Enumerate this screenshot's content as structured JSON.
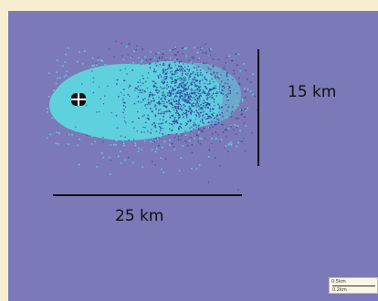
{
  "map": {
    "vertical_scale_label": "15 km",
    "horizontal_scale_label": "25 km",
    "background_color": "#7b79b7",
    "plume_inner_color": "#5fd0de",
    "plume_dense_color": "#2f3f9c",
    "marker_icon": "target-cross-icon",
    "mini_scale": {
      "line1": "0.5km",
      "line2": "0.2km"
    }
  }
}
